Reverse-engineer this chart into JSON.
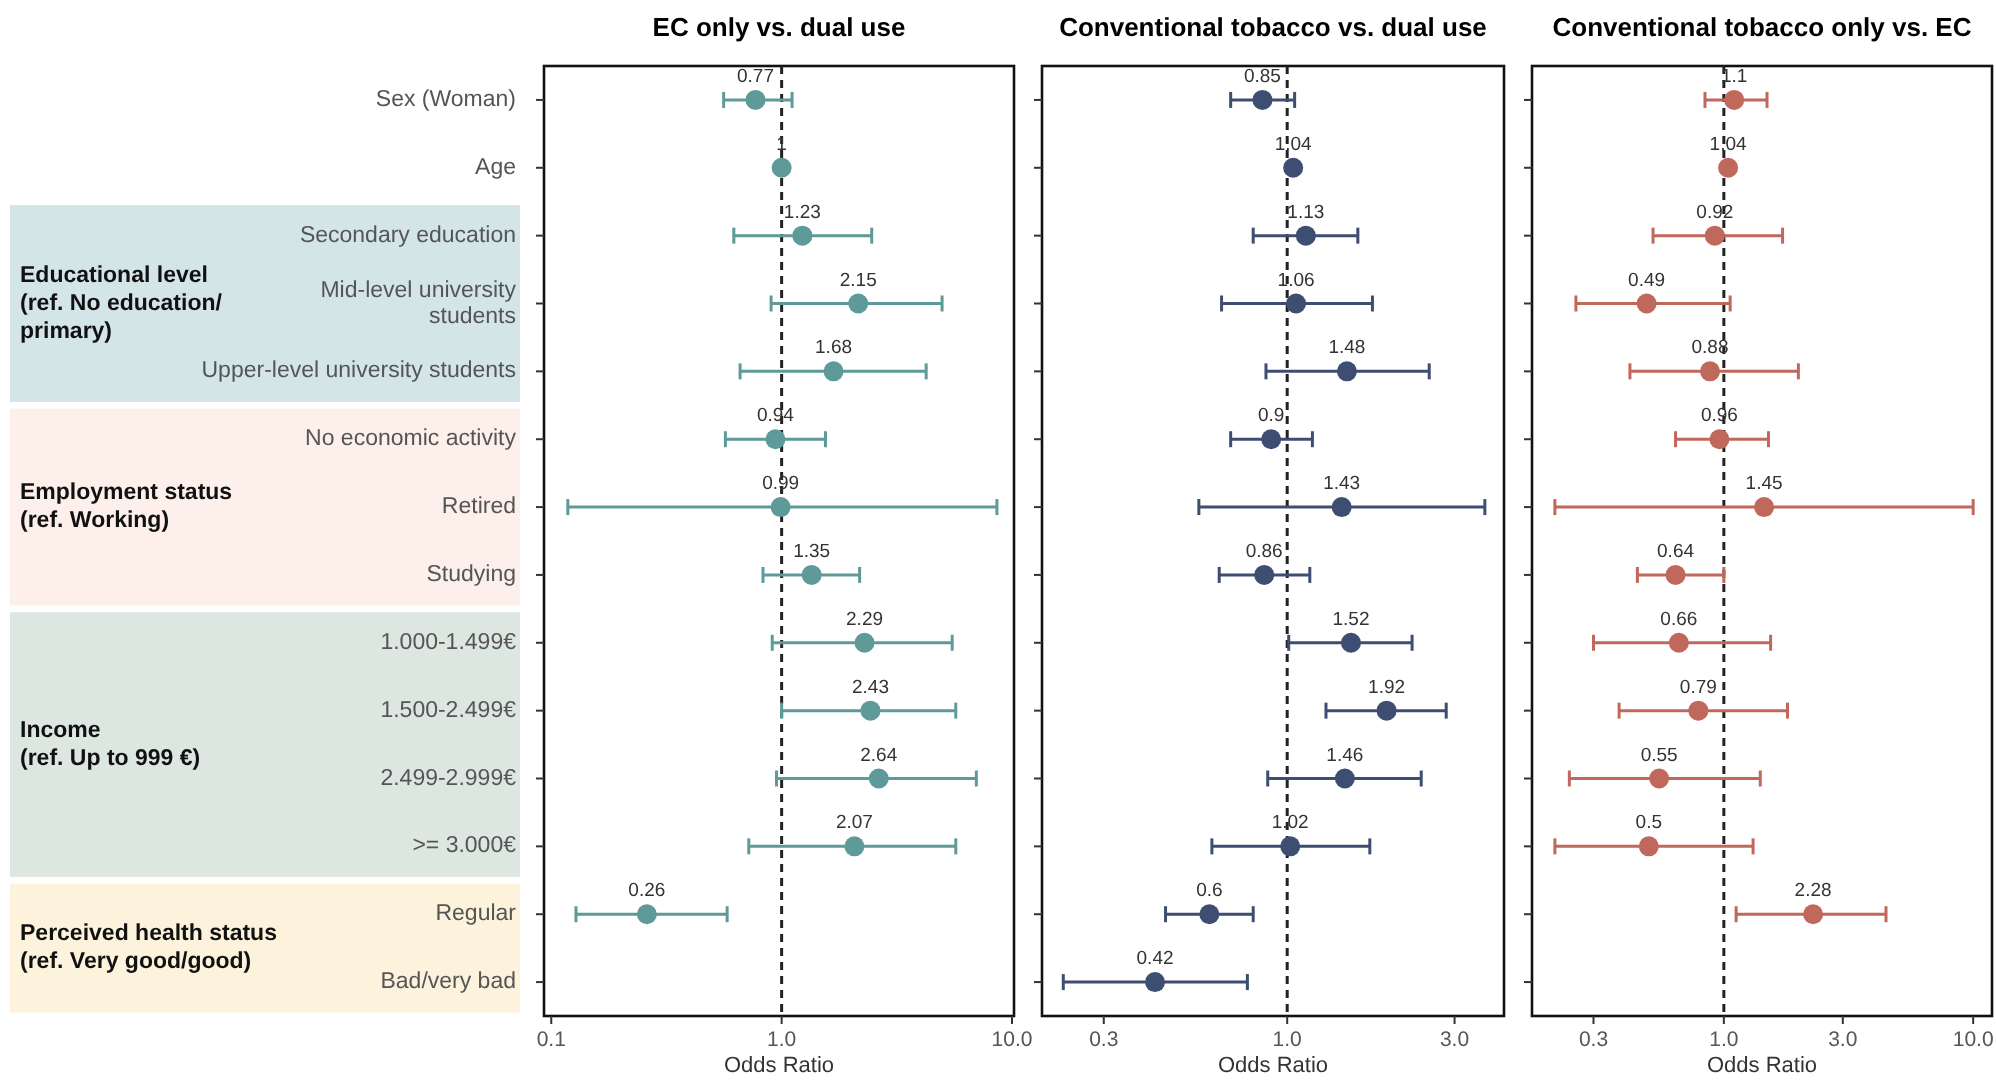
{
  "chart_data": [
    {
      "type": "scatter",
      "title": "EC only vs. dual use",
      "xlabel": "Odds Ratio",
      "orientation": "horizontal",
      "log": "x",
      "marker": "circle",
      "data_labels": true,
      "categories": [
        "Sex (Woman)",
        "Age",
        "Secondary education",
        "Mid-level university\nstudents",
        "Upper-level university students",
        "No economic activity",
        "Retired",
        "Studying",
        "1.000-1.499€",
        "1.500-2.499€",
        "2.499-2.999€",
        ">= 3.000€",
        "Regular",
        "Bad/very bad"
      ],
      "xlim": [
        0.093,
        10.2
      ],
      "xticks": [
        {
          "value": 0.1,
          "label": "0.1"
        },
        {
          "value": 1,
          "label": "1.0"
        },
        {
          "value": 10,
          "label": "10.0"
        }
      ],
      "ref_lines": [
        {
          "axis": "x",
          "value": 1,
          "line_style": "dashed",
          "color": "#222222"
        }
      ],
      "annotations": [
        "Educational level\n(ref. No education/\nprimary)",
        "Employment status\n(ref. Working)",
        "Income\n(ref. Up to 999 €)",
        "Perceived health status\n(ref. Very good/good)"
      ],
      "series": [
        {
          "color": "#5e9a99",
          "values": [
            0.77,
            1,
            1.23,
            2.15,
            1.68,
            0.94,
            0.99,
            1.35,
            2.29,
            2.43,
            2.64,
            2.07,
            0.26,
            null
          ],
          "errors": [
            [
              0.56,
              1.11
            ],
            null,
            [
              0.62,
              2.46
            ],
            [
              0.9,
              4.97
            ],
            [
              0.66,
              4.24
            ],
            [
              0.57,
              1.55
            ],
            [
              0.118,
              8.6
            ],
            [
              0.83,
              2.18
            ],
            [
              0.91,
              5.5
            ],
            [
              1.0,
              5.7
            ],
            [
              0.95,
              7.0
            ],
            [
              0.72,
              5.7
            ],
            [
              0.128,
              0.58
            ],
            null
          ]
        }
      ]
    },
    {
      "type": "scatter",
      "title": "Conventional tobacco vs. dual use",
      "xlabel": "Odds Ratio",
      "orientation": "horizontal",
      "log": "x",
      "marker": "circle",
      "data_labels": true,
      "tick_labels": "x",
      "categories": [
        "Sex (Woman)",
        "Age",
        "Secondary education",
        "Mid-level university\nstudents",
        "Upper-level university students",
        "No economic activity",
        "Retired",
        "Studying",
        "1.000-1.499€",
        "1.500-2.499€",
        "2.499-2.999€",
        ">= 3.000€",
        "Regular",
        "Bad/very bad"
      ],
      "xlim": [
        0.2,
        4.15
      ],
      "xticks": [
        {
          "value": 0.3,
          "label": "0.3"
        },
        {
          "value": 1,
          "label": "1.0"
        },
        {
          "value": 3,
          "label": "3.0"
        }
      ],
      "ref_lines": [
        {
          "axis": "x",
          "value": 1,
          "line_style": "dashed",
          "color": "#222222"
        }
      ],
      "series": [
        {
          "color": "#3e4e72",
          "values": [
            0.85,
            1.04,
            1.13,
            1.06,
            1.48,
            0.9,
            1.43,
            0.86,
            1.52,
            1.92,
            1.46,
            1.02,
            0.6,
            0.42
          ],
          "errors": [
            [
              0.69,
              1.05
            ],
            null,
            [
              0.8,
              1.59
            ],
            [
              0.65,
              1.75
            ],
            [
              0.87,
              2.54
            ],
            [
              0.69,
              1.18
            ],
            [
              0.56,
              3.66
            ],
            [
              0.64,
              1.16
            ],
            [
              1.01,
              2.27
            ],
            [
              1.29,
              2.84
            ],
            [
              0.88,
              2.41
            ],
            [
              0.61,
              1.72
            ],
            [
              0.45,
              0.8
            ],
            [
              0.23,
              0.77
            ]
          ]
        }
      ]
    },
    {
      "type": "scatter",
      "title": "Conventional tobacco only vs. EC",
      "xlabel": "Odds Ratio",
      "orientation": "horizontal",
      "log": "x",
      "marker": "circle",
      "data_labels": true,
      "tick_labels": "x",
      "categories": [
        "Sex (Woman)",
        "Age",
        "Secondary education",
        "Mid-level university\nstudents",
        "Upper-level university students",
        "No economic activity",
        "Retired",
        "Studying",
        "1.000-1.499€",
        "1.500-2.499€",
        "2.499-2.999€",
        ">= 3.000€",
        "Regular",
        "Bad/very bad"
      ],
      "xlim": [
        0.17,
        11.9
      ],
      "xticks": [
        {
          "value": 0.3,
          "label": "0.3"
        },
        {
          "value": 1,
          "label": "1.0"
        },
        {
          "value": 3,
          "label": "3.0"
        },
        {
          "value": 10,
          "label": "10.0"
        }
      ],
      "ref_lines": [
        {
          "axis": "x",
          "value": 1,
          "line_style": "dashed",
          "color": "#222222"
        }
      ],
      "series": [
        {
          "color": "#c0685b",
          "values": [
            1.1,
            1.04,
            0.92,
            0.49,
            0.88,
            0.96,
            1.45,
            0.64,
            0.66,
            0.79,
            0.55,
            0.5,
            2.28,
            null
          ],
          "errors": [
            [
              0.84,
              1.49
            ],
            null,
            [
              0.52,
              1.72
            ],
            [
              0.255,
              1.06
            ],
            [
              0.42,
              1.99
            ],
            [
              0.64,
              1.51
            ],
            [
              0.21,
              10.0
            ],
            [
              0.45,
              1.0
            ],
            [
              0.3,
              1.54
            ],
            [
              0.38,
              1.8
            ],
            [
              0.24,
              1.4
            ],
            [
              0.21,
              1.31
            ],
            [
              1.12,
              4.47
            ],
            null
          ]
        }
      ]
    }
  ]
}
